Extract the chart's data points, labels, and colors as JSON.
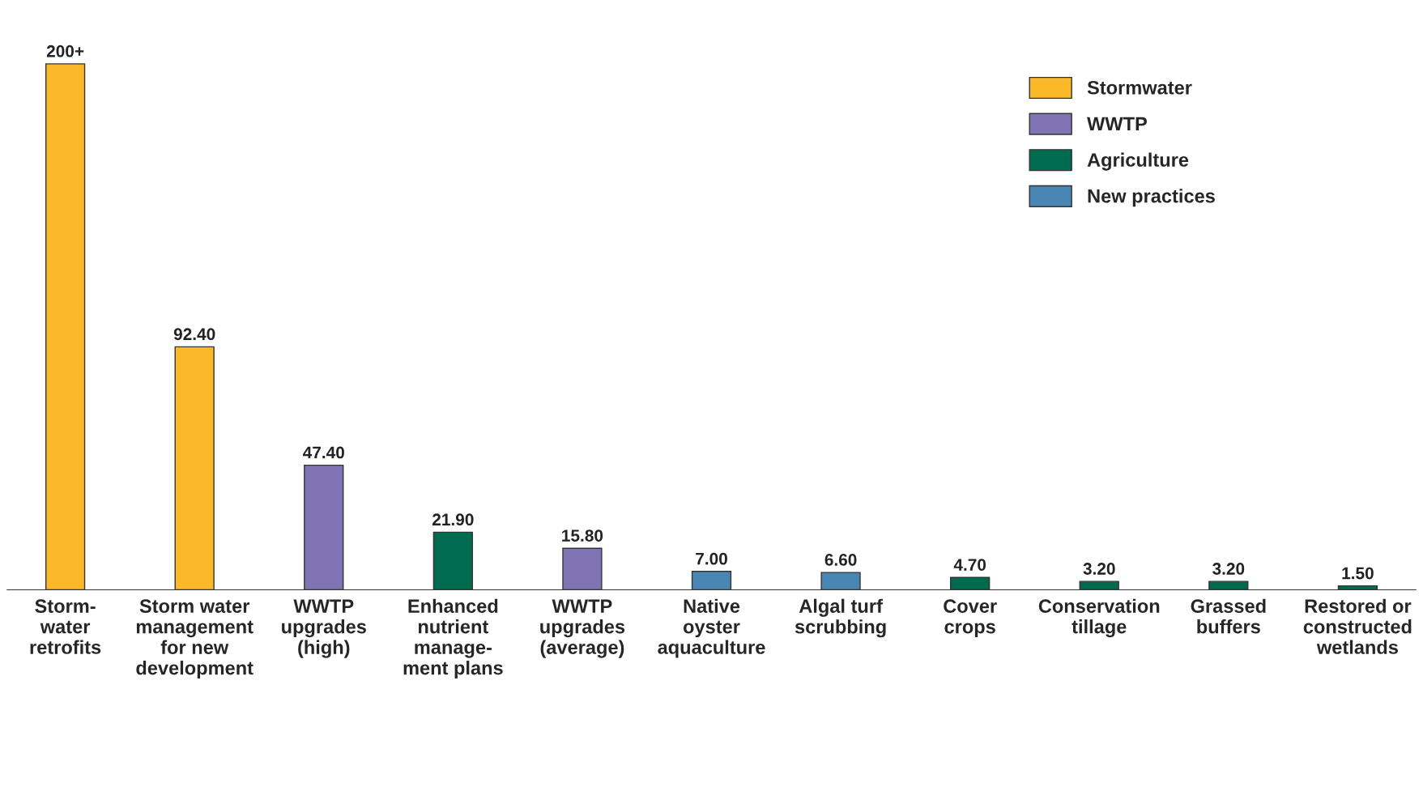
{
  "chart_data": {
    "type": "bar",
    "categories": [
      "Storm-\nwater\nretrofits",
      "Storm water\nmanagement\nfor new\ndevelopment",
      "WWTP\nupgrades\n(high)",
      "Enhanced\nnutrient\nmanage-\nment plans",
      "WWTP\nupgrades\n(average)",
      "Native\noyster\naquaculture",
      "Algal turf\nscrubbing",
      "Cover\ncrops",
      "Conservation\ntillage",
      "Grassed\nbuffers",
      "Restored or\nconstructed\nwetlands"
    ],
    "series": [
      {
        "name": "Stormwater",
        "color": "#fbb829",
        "values": [
          200,
          92.4,
          null,
          null,
          null,
          null,
          null,
          null,
          null,
          null,
          null
        ],
        "value_labels": [
          "200+",
          "92.40",
          null,
          null,
          null,
          null,
          null,
          null,
          null,
          null,
          null
        ]
      },
      {
        "name": "WWTP",
        "color": "#8174b4",
        "values": [
          null,
          null,
          47.4,
          null,
          15.8,
          null,
          null,
          null,
          null,
          null,
          null
        ],
        "value_labels": [
          null,
          null,
          "47.40",
          null,
          "15.80",
          null,
          null,
          null,
          null,
          null,
          null
        ]
      },
      {
        "name": "Agriculture",
        "color": "#006b4f",
        "values": [
          null,
          null,
          null,
          21.9,
          null,
          null,
          null,
          4.7,
          3.2,
          3.2,
          1.5
        ],
        "value_labels": [
          null,
          null,
          null,
          "21.90",
          null,
          null,
          null,
          "4.70",
          "3.20",
          "3.20",
          "1.50"
        ]
      },
      {
        "name": "New practices",
        "color": "#4a86b4",
        "values": [
          null,
          null,
          null,
          null,
          null,
          7.0,
          6.6,
          null,
          null,
          null,
          null
        ],
        "value_labels": [
          null,
          null,
          null,
          null,
          null,
          "7.00",
          "6.60",
          null,
          null,
          null,
          null
        ]
      }
    ],
    "legend": "top right",
    "grid": false
  }
}
